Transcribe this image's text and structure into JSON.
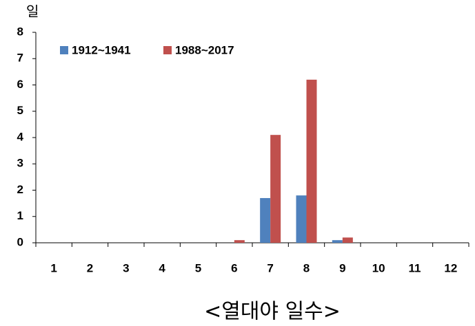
{
  "chart_data": {
    "type": "bar",
    "title": "<열대야 일수>",
    "y_label": "일",
    "categories": [
      "1",
      "2",
      "3",
      "4",
      "5",
      "6",
      "7",
      "8",
      "9",
      "10",
      "11",
      "12"
    ],
    "series": [
      {
        "name": "1912~1941",
        "color": "#4f81bd",
        "values": [
          0,
          0,
          0,
          0,
          0,
          0,
          1.7,
          1.8,
          0.1,
          0,
          0,
          0
        ]
      },
      {
        "name": "1988~2017",
        "color": "#c0504d",
        "values": [
          0,
          0,
          0,
          0,
          0,
          0.1,
          4.1,
          6.2,
          0.2,
          0,
          0,
          0
        ]
      }
    ],
    "ylim": [
      0,
      8
    ],
    "yticks": [
      0,
      1,
      2,
      3,
      4,
      5,
      6,
      7,
      8
    ],
    "legend": "top-left",
    "grid": false
  }
}
